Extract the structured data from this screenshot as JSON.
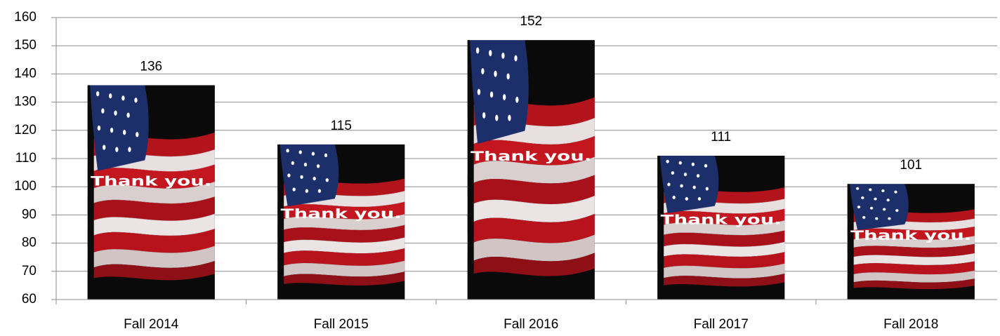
{
  "chart_data": {
    "type": "bar",
    "categories": [
      "Fall 2014",
      "Fall 2015",
      "Fall 2016",
      "Fall 2017",
      "Fall 2018"
    ],
    "values": [
      136,
      115,
      152,
      111,
      101
    ],
    "bar_image_text": "Thank you.",
    "ylim": [
      60,
      160
    ],
    "yticks": [
      60,
      70,
      80,
      90,
      100,
      110,
      120,
      130,
      140,
      150,
      160
    ],
    "grid": true
  }
}
